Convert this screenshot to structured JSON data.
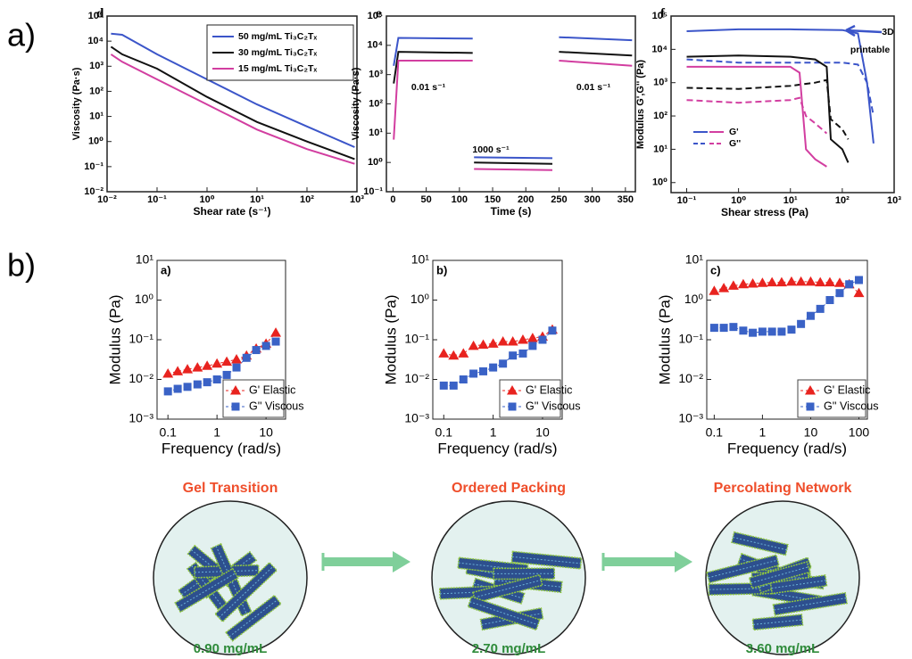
{
  "figure": {
    "row_labels": [
      "a)",
      "b)"
    ],
    "stages": [
      {
        "title": "Gel Transition",
        "concentration": "0.90 mg/mL"
      },
      {
        "title": "Ordered Packing",
        "concentration": "2.70 mg/mL"
      },
      {
        "title": "Percolating Network",
        "concentration": "3.60 mg/mL"
      }
    ]
  },
  "chart_data": [
    {
      "type": "line",
      "panel": "d",
      "xlog": true,
      "ylog": true,
      "grid": false,
      "legend": "upper right",
      "xlabel": "Shear rate (s⁻¹)",
      "ylabel": "Viscosity (Pa·s)",
      "xlim": [
        0.01,
        1000
      ],
      "ylim": [
        0.01,
        100000
      ],
      "xticks": [
        {
          "value": 0.01,
          "label": "10⁻²"
        },
        {
          "value": 0.1,
          "label": "10⁻¹"
        },
        {
          "value": 1,
          "label": "10⁰"
        },
        {
          "value": 10,
          "label": "10¹"
        },
        {
          "value": 100,
          "label": "10²"
        },
        {
          "value": 1000,
          "label": "10³"
        }
      ],
      "yticks": [
        {
          "value": 0.01,
          "label": "10⁻²"
        },
        {
          "value": 0.1,
          "label": "10⁻¹"
        },
        {
          "value": 1,
          "label": "10⁰"
        },
        {
          "value": 10,
          "label": "10¹"
        },
        {
          "value": 100,
          "label": "10²"
        },
        {
          "value": 1000,
          "label": "10³"
        },
        {
          "value": 10000,
          "label": "10⁴"
        },
        {
          "value": 100000,
          "label": "10⁵"
        }
      ],
      "series": [
        {
          "name": "50 mg/mL Ti₃C₂Tₓ",
          "color": "#3b55c9",
          "x": [
            0.012,
            0.02,
            0.1,
            1,
            10,
            100,
            900
          ],
          "values": [
            20000,
            18000,
            3000,
            300,
            30,
            4,
            0.6
          ]
        },
        {
          "name": "30 mg/mL Ti₃C₂Tₓ",
          "color": "#111111",
          "x": [
            0.012,
            0.02,
            0.1,
            1,
            10,
            100,
            900
          ],
          "values": [
            6000,
            3000,
            800,
            60,
            6,
            1,
            0.2
          ]
        },
        {
          "name": "15 mg/mL Ti₃C₂Tₓ",
          "color": "#d23ea0",
          "x": [
            0.012,
            0.02,
            0.1,
            1,
            10,
            100,
            900
          ],
          "values": [
            3000,
            1500,
            300,
            30,
            3,
            0.5,
            0.13
          ]
        }
      ]
    },
    {
      "type": "line",
      "panel": "e",
      "xlog": false,
      "ylog": true,
      "grid": false,
      "xlabel": "Time (s)",
      "ylabel": "Viscosity (Pa·s)",
      "xlim": [
        -10,
        365
      ],
      "ylim": [
        0.1,
        100000
      ],
      "xticks": [
        0,
        50,
        100,
        150,
        200,
        250,
        300,
        350
      ],
      "yticks": [
        {
          "value": 0.1,
          "label": "10⁻¹"
        },
        {
          "value": 1,
          "label": "10⁰"
        },
        {
          "value": 10,
          "label": "10¹"
        },
        {
          "value": 100,
          "label": "10²"
        },
        {
          "value": 1000,
          "label": "10³"
        },
        {
          "value": 10000,
          "label": "10⁴"
        },
        {
          "value": 100000,
          "label": "10⁵"
        }
      ],
      "x": [
        1,
        8,
        120,
        121,
        122,
        240,
        241,
        250,
        360
      ],
      "annotations": [
        "0.01 s⁻¹",
        "1000 s⁻¹",
        "0.01 s⁻¹"
      ],
      "series": [
        {
          "color": "#3b55c9",
          "values": [
            2000,
            18000,
            17000,
            null,
            1.5,
            1.4,
            null,
            19000,
            15000
          ]
        },
        {
          "color": "#111111",
          "values": [
            500,
            6000,
            5500,
            null,
            1.0,
            0.9,
            null,
            6000,
            4500
          ]
        },
        {
          "color": "#d23ea0",
          "values": [
            6,
            3000,
            3000,
            null,
            0.6,
            0.55,
            null,
            3000,
            2000
          ]
        }
      ]
    },
    {
      "type": "line",
      "panel": "f",
      "xlog": true,
      "ylog": true,
      "grid": false,
      "xlabel": "Shear stress (Pa)",
      "ylabel": "Modulus G',G'' (Pa)",
      "xlim": [
        0.05,
        1000
      ],
      "ylim": [
        0.5,
        100000
      ],
      "xticks": [
        {
          "value": 0.1,
          "label": "10⁻¹"
        },
        {
          "value": 1,
          "label": "10⁰"
        },
        {
          "value": 10,
          "label": "10¹"
        },
        {
          "value": 100,
          "label": "10²"
        },
        {
          "value": 1000,
          "label": "10³"
        }
      ],
      "yticks": [
        {
          "value": 1,
          "label": "10⁰"
        },
        {
          "value": 10,
          "label": "10¹"
        },
        {
          "value": 100,
          "label": "10²"
        },
        {
          "value": 1000,
          "label": "10³"
        },
        {
          "value": 10000,
          "label": "10⁴"
        },
        {
          "value": 100000,
          "label": "10⁵"
        }
      ],
      "annotations": [
        "3D",
        "printable"
      ],
      "legend_entries": [
        {
          "label": "G'",
          "dash": false,
          "colors": [
            "#3b55c9",
            "#d23ea0"
          ]
        },
        {
          "label": "G''",
          "dash": true,
          "colors": [
            "#3b55c9",
            "#d23ea0"
          ]
        }
      ],
      "series": [
        {
          "color": "#3b55c9",
          "dash": false,
          "x": [
            0.1,
            1,
            10,
            100,
            200,
            300,
            400
          ],
          "values": [
            35000,
            40000,
            40000,
            38000,
            30000,
            1000,
            15
          ]
        },
        {
          "color": "#3b55c9",
          "dash": true,
          "x": [
            0.1,
            1,
            10,
            100,
            200,
            300,
            400
          ],
          "values": [
            5000,
            4000,
            4000,
            4000,
            3500,
            1000,
            100
          ]
        },
        {
          "color": "#111111",
          "dash": false,
          "x": [
            0.1,
            1,
            10,
            30,
            50,
            60,
            100,
            130
          ],
          "values": [
            6000,
            6500,
            6000,
            5000,
            3000,
            20,
            10,
            4
          ]
        },
        {
          "color": "#111111",
          "dash": true,
          "x": [
            0.1,
            1,
            10,
            30,
            50,
            60,
            100,
            130
          ],
          "values": [
            700,
            650,
            800,
            1000,
            1200,
            80,
            40,
            20
          ]
        },
        {
          "color": "#d23ea0",
          "dash": false,
          "x": [
            0.1,
            1,
            10,
            15,
            20,
            30,
            50
          ],
          "values": [
            3000,
            3000,
            3000,
            2000,
            10,
            5,
            3
          ]
        },
        {
          "color": "#d23ea0",
          "dash": true,
          "x": [
            0.1,
            1,
            10,
            15,
            20,
            30,
            50
          ],
          "values": [
            300,
            250,
            300,
            350,
            100,
            60,
            30
          ]
        }
      ]
    },
    {
      "type": "scatter",
      "panel": "a)",
      "xlog": true,
      "ylog": true,
      "grid": false,
      "legend": "lower right",
      "xlabel": "Frequency (rad/s)",
      "ylabel": "Modulus (Pa)",
      "xlim": [
        0.06,
        25
      ],
      "ylim": [
        0.001,
        10
      ],
      "xticks": [
        0.1,
        1,
        10
      ],
      "yticks": [
        {
          "value": 0.001,
          "label": "10⁻³"
        },
        {
          "value": 0.01,
          "label": "10⁻²"
        },
        {
          "value": 0.1,
          "label": "10⁻¹"
        },
        {
          "value": 1,
          "label": "10⁰"
        },
        {
          "value": 10,
          "label": "10¹"
        }
      ],
      "x": [
        0.1,
        0.158,
        0.25,
        0.4,
        0.63,
        1,
        1.58,
        2.5,
        4,
        6.3,
        10,
        15.8
      ],
      "series": [
        {
          "name": "G' Elastic",
          "color": "#e8231f",
          "marker": "triangle",
          "values": [
            0.014,
            0.016,
            0.018,
            0.02,
            0.022,
            0.025,
            0.028,
            0.032,
            0.04,
            0.06,
            0.08,
            0.15
          ]
        },
        {
          "name": "G'' Viscous",
          "color": "#3a62c6",
          "marker": "square",
          "values": [
            0.005,
            0.0058,
            0.0065,
            0.0075,
            0.0085,
            0.01,
            0.013,
            0.02,
            0.035,
            0.055,
            0.07,
            0.09
          ]
        }
      ]
    },
    {
      "type": "scatter",
      "panel": "b)",
      "xlog": true,
      "ylog": true,
      "grid": false,
      "legend": "lower right",
      "xlabel": "Frequency (rad/s)",
      "ylabel": "Modulus (Pa)",
      "xlim": [
        0.06,
        25
      ],
      "ylim": [
        0.001,
        10
      ],
      "xticks": [
        0.1,
        1,
        10
      ],
      "yticks": [
        {
          "value": 0.001,
          "label": "10⁻³"
        },
        {
          "value": 0.01,
          "label": "10⁻²"
        },
        {
          "value": 0.1,
          "label": "10⁻¹"
        },
        {
          "value": 1,
          "label": "10⁰"
        },
        {
          "value": 10,
          "label": "10¹"
        }
      ],
      "x": [
        0.1,
        0.158,
        0.25,
        0.4,
        0.63,
        1,
        1.58,
        2.5,
        4,
        6.3,
        10,
        15.8
      ],
      "series": [
        {
          "name": "G' Elastic",
          "color": "#e8231f",
          "marker": "triangle",
          "values": [
            0.045,
            0.04,
            0.045,
            0.07,
            0.075,
            0.08,
            0.09,
            0.09,
            0.1,
            0.11,
            0.12,
            0.18
          ]
        },
        {
          "name": "G'' Viscous",
          "color": "#3a62c6",
          "marker": "square",
          "values": [
            0.007,
            0.007,
            0.01,
            0.014,
            0.016,
            0.02,
            0.025,
            0.04,
            0.045,
            0.07,
            0.1,
            0.17
          ]
        }
      ]
    },
    {
      "type": "scatter",
      "panel": "c)",
      "xlog": true,
      "ylog": true,
      "grid": false,
      "legend": "lower right",
      "xlabel": "Frequency (rad/s)",
      "ylabel": "Modulus (Pa)",
      "xlim": [
        0.07,
        150
      ],
      "ylim": [
        0.001,
        10
      ],
      "xticks": [
        0.1,
        1,
        10,
        100
      ],
      "yticks": [
        {
          "value": 0.001,
          "label": "10⁻³"
        },
        {
          "value": 0.01,
          "label": "10⁻²"
        },
        {
          "value": 0.1,
          "label": "10⁻¹"
        },
        {
          "value": 1,
          "label": "10⁰"
        },
        {
          "value": 10,
          "label": "10¹"
        }
      ],
      "x": [
        0.1,
        0.158,
        0.25,
        0.4,
        0.63,
        1,
        1.58,
        2.5,
        4,
        6.3,
        10,
        15.8,
        25,
        40,
        63,
        100
      ],
      "series": [
        {
          "name": "G' Elastic",
          "color": "#e8231f",
          "marker": "triangle",
          "values": [
            1.7,
            2.0,
            2.3,
            2.5,
            2.6,
            2.7,
            2.8,
            2.8,
            2.9,
            2.9,
            2.9,
            2.8,
            2.8,
            2.7,
            2.5,
            1.5
          ]
        },
        {
          "name": "G'' Viscous",
          "color": "#3a62c6",
          "marker": "square",
          "values": [
            0.2,
            0.2,
            0.21,
            0.17,
            0.15,
            0.16,
            0.16,
            0.16,
            0.18,
            0.25,
            0.4,
            0.6,
            1.0,
            1.5,
            2.5,
            3.2
          ]
        }
      ]
    }
  ]
}
